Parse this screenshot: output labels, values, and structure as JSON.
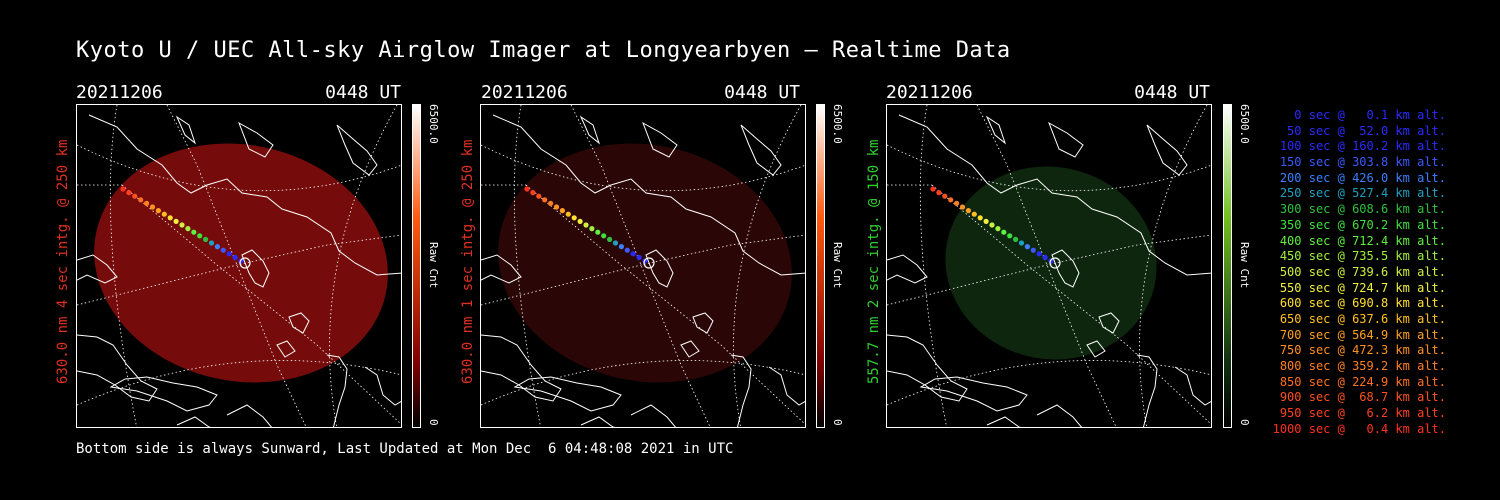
{
  "title": "Kyoto U / UEC All-sky Airglow Imager at Longyearbyen — Realtime Data",
  "panels": [
    {
      "date": "20211206",
      "time": "0448 UT",
      "label": "630.0 nm 4 sec intg. @ 250 km",
      "label_color": "#e03020",
      "cbar_max": "6500.0",
      "cbar_min": "0",
      "cbar_unit": "Raw Cnt",
      "cbar_top_color": "#ffffff",
      "cbar_mid_color": "#ff5a10",
      "cbar_low_color": "#800000",
      "glow_color": "#8a0d0d",
      "glow_opacity": 0.85
    },
    {
      "date": "20211206",
      "time": "0448 UT",
      "label": "630.0 nm 1 sec intg. @ 250 km",
      "label_color": "#e03020",
      "cbar_max": "6500.0",
      "cbar_min": "0",
      "cbar_unit": "Raw Cnt",
      "cbar_top_color": "#ffffff",
      "cbar_mid_color": "#ff5a10",
      "cbar_low_color": "#800000",
      "glow_color": "#3a0808",
      "glow_opacity": 0.75
    },
    {
      "date": "20211206",
      "time": "0448 UT",
      "label": "557.7 nm 2 sec intg. @ 150 km",
      "label_color": "#30d030",
      "cbar_max": "6500.0",
      "cbar_min": "0",
      "cbar_unit": "Raw Cnt",
      "cbar_top_color": "#ffffff",
      "cbar_mid_color": "#70c020",
      "cbar_low_color": "#103010",
      "glow_color": "#0e2a0e",
      "glow_opacity": 0.9
    }
  ],
  "legend": [
    {
      "text": "0 sec @   0.1 km alt.",
      "color": "#2a2aff"
    },
    {
      "text": "50 sec @  52.0 km alt.",
      "color": "#2a2aff"
    },
    {
      "text": "100 sec @ 160.2 km alt.",
      "color": "#2a2aff"
    },
    {
      "text": "150 sec @ 303.8 km alt.",
      "color": "#3a5aff"
    },
    {
      "text": "200 sec @ 426.0 km alt.",
      "color": "#3a80ff"
    },
    {
      "text": "250 sec @ 527.4 km alt.",
      "color": "#20a0c0"
    },
    {
      "text": "300 sec @ 608.6 km alt.",
      "color": "#30c040"
    },
    {
      "text": "350 sec @ 670.2 km alt.",
      "color": "#40e040"
    },
    {
      "text": "400 sec @ 712.4 km alt.",
      "color": "#60f040"
    },
    {
      "text": "450 sec @ 735.5 km alt.",
      "color": "#a0f040"
    },
    {
      "text": "500 sec @ 739.6 km alt.",
      "color": "#d0f040"
    },
    {
      "text": "550 sec @ 724.7 km alt.",
      "color": "#f0f040"
    },
    {
      "text": "600 sec @ 690.8 km alt.",
      "color": "#ffe030"
    },
    {
      "text": "650 sec @ 637.6 km alt.",
      "color": "#ffc020"
    },
    {
      "text": "700 sec @ 564.9 km alt.",
      "color": "#ffa020"
    },
    {
      "text": "750 sec @ 472.3 km alt.",
      "color": "#ff9020"
    },
    {
      "text": "800 sec @ 359.2 km alt.",
      "color": "#ff8020"
    },
    {
      "text": "850 sec @ 224.9 km alt.",
      "color": "#ff7020"
    },
    {
      "text": "900 sec @  68.7 km alt.",
      "color": "#ff5020"
    },
    {
      "text": "950 sec @   6.2 km alt.",
      "color": "#ff4020"
    },
    {
      "text": "1000 sec @   0.4 km alt.",
      "color": "#ff3020"
    }
  ],
  "footer": "Bottom side is always Sunward, Last Updated at Mon Dec  6 04:48:08 2021 in UTC"
}
